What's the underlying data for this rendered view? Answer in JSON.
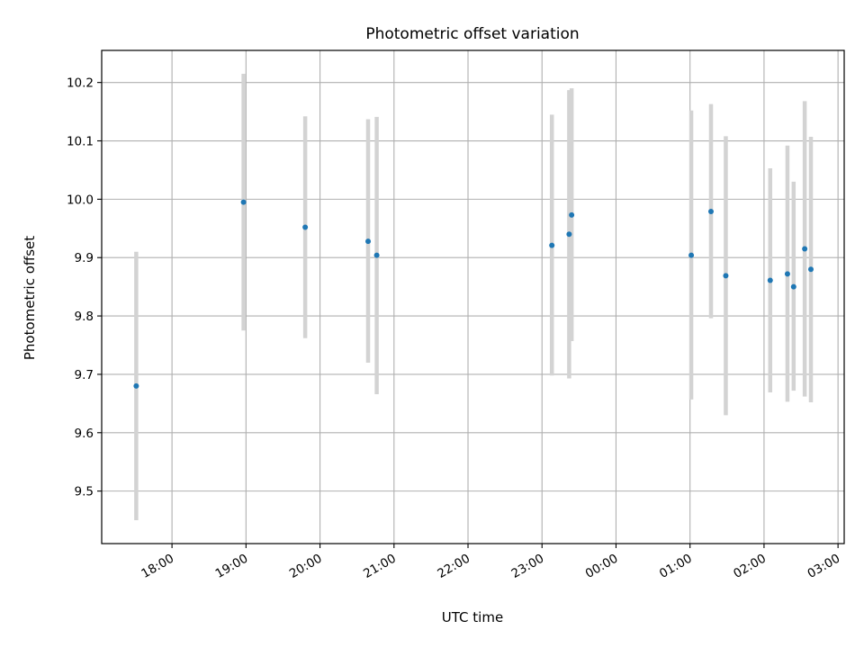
{
  "chart_data": {
    "type": "scatter",
    "title": "Photometric offset variation",
    "xlabel": "UTC time",
    "ylabel": "Photometric offset",
    "x_axis_kind": "time",
    "xlim": [
      "17:03",
      "03:05"
    ],
    "ylim": [
      9.41,
      10.255
    ],
    "x_ticks": [
      "18:00",
      "19:00",
      "20:00",
      "21:00",
      "22:00",
      "23:00",
      "00:00",
      "01:00",
      "02:00",
      "03:00"
    ],
    "y_ticks": [
      9.5,
      9.6,
      9.7,
      9.8,
      9.9,
      10.0,
      10.1,
      10.2
    ],
    "y_tick_labels": [
      "9.5",
      "9.6",
      "9.7",
      "9.8",
      "9.9",
      "10.0",
      "10.1",
      "10.2"
    ],
    "grid": true,
    "marker_color": "#1f77b4",
    "errorbar_color": "#d3d3d3",
    "points": [
      {
        "x": "17:31",
        "y": 9.68,
        "y_low": 9.45,
        "y_high": 9.91
      },
      {
        "x": "18:58",
        "y": 9.995,
        "y_low": 9.775,
        "y_high": 10.215
      },
      {
        "x": "19:48",
        "y": 9.952,
        "y_low": 9.762,
        "y_high": 10.142
      },
      {
        "x": "20:39",
        "y": 9.928,
        "y_low": 9.72,
        "y_high": 10.137
      },
      {
        "x": "20:46",
        "y": 9.904,
        "y_low": 9.666,
        "y_high": 10.141
      },
      {
        "x": "23:08",
        "y": 9.921,
        "y_low": 9.698,
        "y_high": 10.145
      },
      {
        "x": "23:22",
        "y": 9.94,
        "y_low": 9.693,
        "y_high": 10.187
      },
      {
        "x": "23:24",
        "y": 9.973,
        "y_low": 9.757,
        "y_high": 10.19
      },
      {
        "x": "01:01",
        "y": 9.904,
        "y_low": 9.657,
        "y_high": 10.152
      },
      {
        "x": "01:17",
        "y": 9.979,
        "y_low": 9.796,
        "y_high": 10.163
      },
      {
        "x": "01:29",
        "y": 9.869,
        "y_low": 9.63,
        "y_high": 10.108
      },
      {
        "x": "02:05",
        "y": 9.861,
        "y_low": 9.669,
        "y_high": 10.053
      },
      {
        "x": "02:19",
        "y": 9.872,
        "y_low": 9.653,
        "y_high": 10.092
      },
      {
        "x": "02:24",
        "y": 9.85,
        "y_low": 9.672,
        "y_high": 10.03
      },
      {
        "x": "02:33",
        "y": 9.915,
        "y_low": 9.662,
        "y_high": 10.168
      },
      {
        "x": "02:38",
        "y": 9.88,
        "y_low": 9.652,
        "y_high": 10.107
      }
    ]
  }
}
